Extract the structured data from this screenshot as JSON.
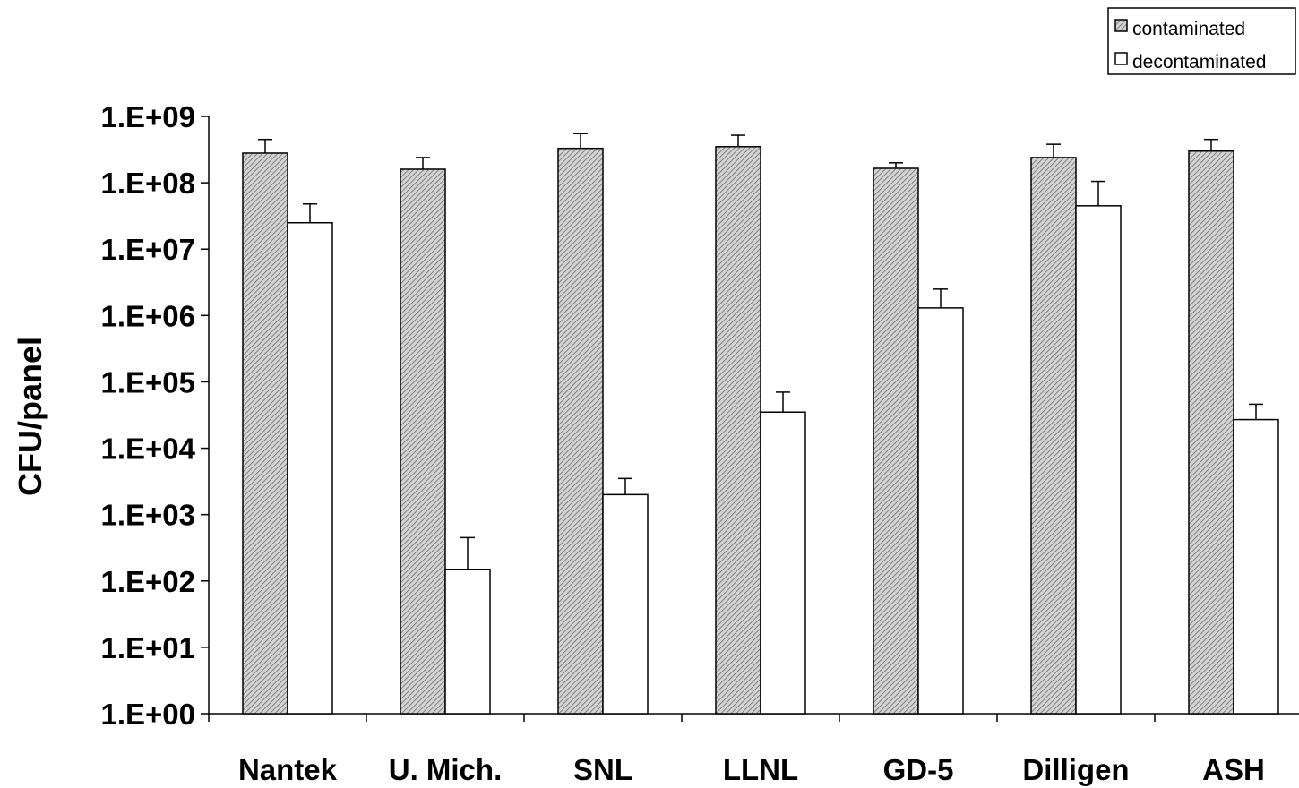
{
  "chart_data": {
    "type": "bar",
    "title": "",
    "xlabel": "",
    "ylabel": "CFU/panel",
    "yscale": "log",
    "ylim": [
      1,
      1000000000
    ],
    "yticks": [
      "1.E+00",
      "1.E+01",
      "1.E+02",
      "1.E+03",
      "1.E+04",
      "1.E+05",
      "1.E+06",
      "1.E+07",
      "1.E+08",
      "1.E+09"
    ],
    "categories": [
      "Nantek",
      "U. Mich.",
      "SNL",
      "LLNL",
      "GD-5",
      "Dilligen",
      "ASH"
    ],
    "series": [
      {
        "name": "contaminated",
        "fill": "hatched-gray",
        "values": [
          280000000,
          160000000,
          330000000,
          350000000,
          165000000,
          240000000,
          300000000
        ],
        "error_upper": [
          450000000,
          240000000,
          550000000,
          520000000,
          200000000,
          380000000,
          450000000
        ]
      },
      {
        "name": "decontaminated",
        "fill": "white",
        "values": [
          25000000,
          150,
          2000,
          35000,
          1300000,
          45000000,
          27000
        ],
        "error_upper": [
          48000000,
          450,
          3500,
          70000,
          2500000,
          105000000,
          46000
        ]
      }
    ],
    "grid": false,
    "legend_position": "top-right"
  },
  "legend": {
    "items": [
      {
        "label": "contaminated"
      },
      {
        "label": "decontaminated"
      }
    ]
  }
}
